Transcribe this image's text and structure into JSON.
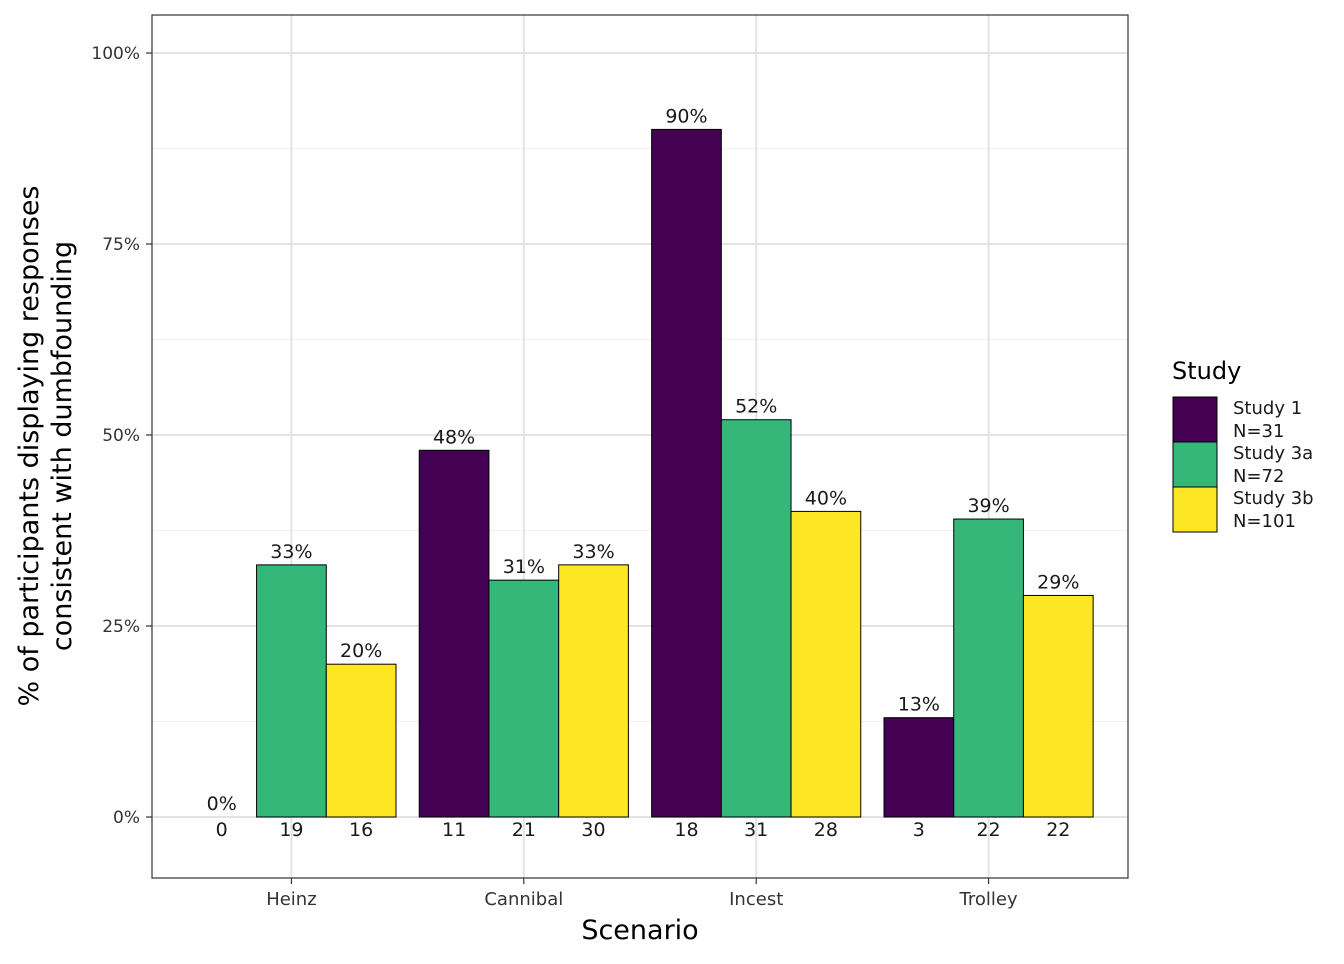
{
  "chart_data": {
    "type": "bar",
    "categories": [
      "Heinz",
      "Cannibal",
      "Incest",
      "Trolley"
    ],
    "series": [
      {
        "name": "Study 1",
        "n_label": "N=31",
        "color": "#440154",
        "values": [
          0,
          48,
          90,
          13
        ],
        "value_labels": [
          "0%",
          "48%",
          "90%",
          "13%"
        ],
        "counts": [
          "0",
          "11",
          "18",
          "3"
        ]
      },
      {
        "name": "Study 3a",
        "n_label": "N=72",
        "color": "#35B779",
        "values": [
          33,
          31,
          52,
          39
        ],
        "value_labels": [
          "33%",
          "31%",
          "52%",
          "39%"
        ],
        "counts": [
          "19",
          "21",
          "31",
          "22"
        ]
      },
      {
        "name": "Study 3b",
        "n_label": "N=101",
        "color": "#FDE725",
        "values": [
          20,
          33,
          40,
          29
        ],
        "value_labels": [
          "20%",
          "33%",
          "40%",
          "29%"
        ],
        "counts": [
          "16",
          "30",
          "28",
          "22"
        ]
      }
    ],
    "xlabel": "Scenario",
    "ylabel": [
      "% of participants displaying responses",
      "consistent with dumbfounding"
    ],
    "ylim": [
      0,
      100
    ],
    "yticks": [
      0,
      25,
      50,
      75,
      100
    ],
    "ytick_labels": [
      "0%",
      "25%",
      "50%",
      "75%",
      "100%"
    ],
    "legend_title": "Study",
    "legend_position": "right",
    "grid": true
  }
}
